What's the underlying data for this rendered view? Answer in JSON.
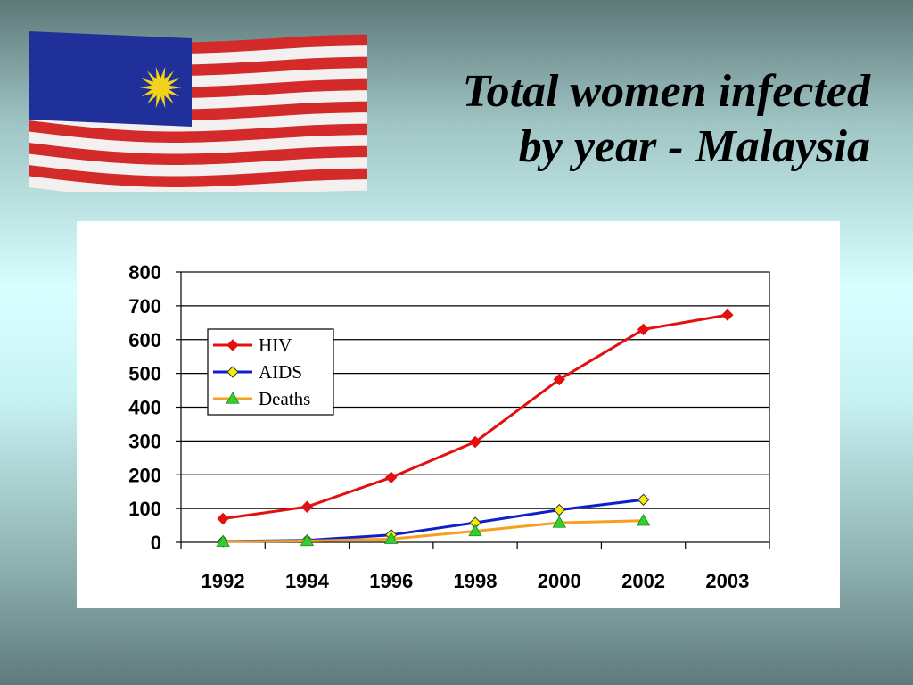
{
  "slide": {
    "title_line1": "Total women infected",
    "title_line2": "by year - Malaysia"
  },
  "flag": {
    "icon": "malaysia-flag-icon"
  },
  "chart_data": {
    "type": "line",
    "categories": [
      "1992",
      "1994",
      "1996",
      "1998",
      "2000",
      "2002",
      "2003"
    ],
    "ylim": [
      0,
      800
    ],
    "yticks": [
      0,
      100,
      200,
      300,
      400,
      500,
      600,
      700,
      800
    ],
    "grid": true,
    "legend_position": "top-left",
    "series": [
      {
        "name": "HIV",
        "color": "#e31010",
        "marker": "diamond",
        "marker_fill": "#e31010",
        "values": [
          70,
          105,
          192,
          297,
          482,
          630,
          673
        ]
      },
      {
        "name": "AIDS",
        "color": "#1020c8",
        "marker": "diamond",
        "marker_fill": "#f4f000",
        "values": [
          3,
          6,
          22,
          58,
          96,
          126,
          null
        ]
      },
      {
        "name": "Deaths",
        "color": "#f5a020",
        "marker": "triangle",
        "marker_fill": "#30d030",
        "values": [
          2,
          4,
          10,
          33,
          58,
          64,
          null
        ]
      }
    ]
  }
}
